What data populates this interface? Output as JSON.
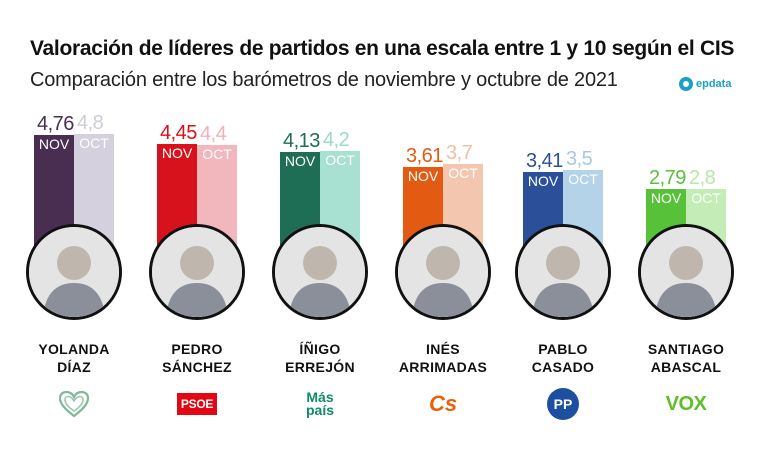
{
  "header": {
    "title": "Valoración de líderes de partidos en una escala entre 1 y 10 según el CIS",
    "subtitle": "Comparación entre los barómetros de noviembre y octubre de 2021",
    "brand": "epdata"
  },
  "chart_data": {
    "type": "bar",
    "title": "Valoración de líderes de partidos en una escala entre 1 y 10 según el CIS",
    "subtitle": "Comparación entre los barómetros de noviembre y octubre de 2021",
    "categories": [
      "YOLANDA DÍAZ",
      "PEDRO SÁNCHEZ",
      "ÍÑIGO ERREJÓN",
      "INÉS ARRIMADAS",
      "PABLO CASADO",
      "SANTIAGO ABASCAL"
    ],
    "series": [
      {
        "name": "NOV",
        "values": [
          4.76,
          4.45,
          4.13,
          3.61,
          3.41,
          2.79
        ],
        "labels": [
          "4,76",
          "4,45",
          "4,13",
          "3,61",
          "3,41",
          "2,79"
        ]
      },
      {
        "name": "OCT",
        "values": [
          4.8,
          4.4,
          4.2,
          3.7,
          3.5,
          2.8
        ],
        "labels": [
          "4,8",
          "4,4",
          "4,2",
          "3,7",
          "3,5",
          "2,8"
        ]
      }
    ],
    "ylim": [
      1,
      10
    ],
    "grid": false
  },
  "leaders": [
    {
      "line1": "YOLANDA",
      "line2": "DÍAZ",
      "party": "sumar-heart-icon",
      "logo_text": "",
      "colors": {
        "nov": "#4a2e52",
        "oct": "#d5d0de",
        "val_nov": "#4a2e52",
        "val_oct": "#cfcad8"
      }
    },
    {
      "line1": "PEDRO",
      "line2": "SÁNCHEZ",
      "party": "psoe-logo",
      "logo_text": "PSOE",
      "colors": {
        "nov": "#d8121c",
        "oct": "#f2b6bd",
        "val_nov": "#d8121c",
        "val_oct": "#f2b0b8"
      }
    },
    {
      "line1": "ÍÑIGO",
      "line2": "ERREJÓN",
      "party": "mas-pais-logo",
      "logo_text": "Más país",
      "colors": {
        "nov": "#1e6e56",
        "oct": "#a8e0d2",
        "val_nov": "#1e6e56",
        "val_oct": "#9ad8c9"
      }
    },
    {
      "line1": "INÉS",
      "line2": "ARRIMADAS",
      "party": "cs-logo",
      "logo_text": "Cs",
      "colors": {
        "nov": "#e35a12",
        "oct": "#f3c6b0",
        "val_nov": "#e35a12",
        "val_oct": "#f0c0a6"
      }
    },
    {
      "line1": "PABLO",
      "line2": "CASADO",
      "party": "pp-logo",
      "logo_text": "PP",
      "colors": {
        "nov": "#2c4f9a",
        "oct": "#b4d2e8",
        "val_nov": "#2c4f9a",
        "val_oct": "#a8c8e2"
      }
    },
    {
      "line1": "SANTIAGO",
      "line2": "ABASCAL",
      "party": "vox-logo",
      "logo_text": "VOX",
      "colors": {
        "nov": "#58c13a",
        "oct": "#c4ecb6",
        "val_nov": "#58c13a",
        "val_oct": "#b8e6a8"
      }
    }
  ]
}
